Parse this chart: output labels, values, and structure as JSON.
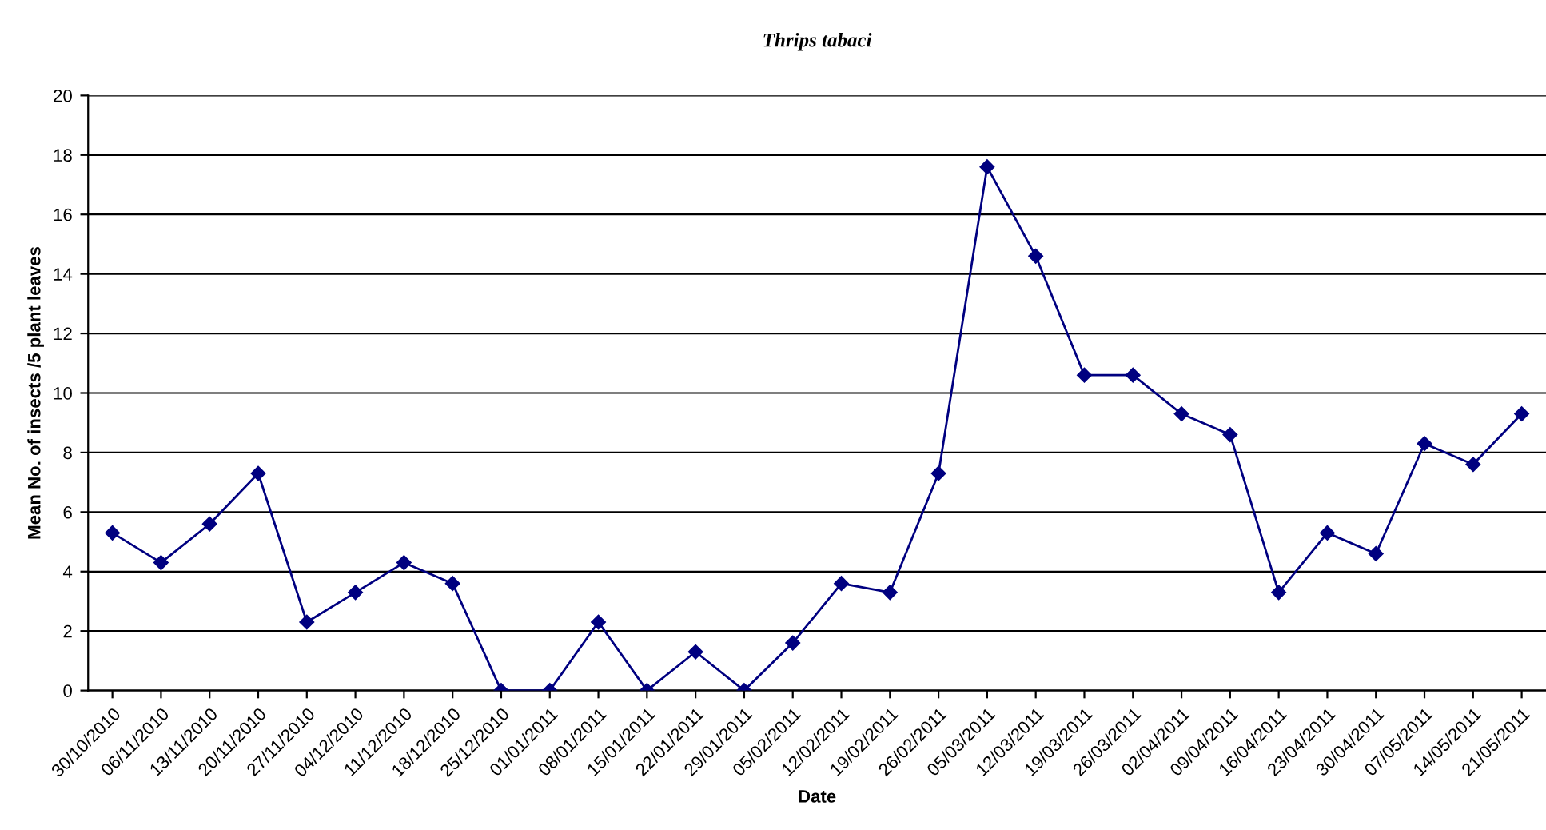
{
  "chart_data": {
    "type": "line",
    "title": "Thrips tabaci",
    "xlabel": "Date",
    "ylabel": "Mean No. of insects /5 plant leaves",
    "categories": [
      "30/10/2010",
      "06/11/2010",
      "13/11/2010",
      "20/11/2010",
      "27/11/2010",
      "04/12/2010",
      "11/12/2010",
      "18/12/2010",
      "25/12/2010",
      "01/01/2011",
      "08/01/2011",
      "15/01/2011",
      "22/01/2011",
      "29/01/2011",
      "05/02/2011",
      "12/02/2011",
      "19/02/2011",
      "26/02/2011",
      "05/03/2011",
      "12/03/2011",
      "19/03/2011",
      "26/03/2011",
      "02/04/2011",
      "09/04/2011",
      "16/04/2011",
      "23/04/2011",
      "30/04/2011",
      "07/05/2011",
      "14/05/2011",
      "21/05/2011"
    ],
    "series": [
      {
        "color": "#000080",
        "values": [
          5.3,
          4.3,
          5.6,
          7.3,
          2.3,
          3.3,
          4.3,
          3.6,
          0,
          0,
          2.3,
          0,
          1.3,
          0,
          1.6,
          3.6,
          3.3,
          7.3,
          17.6,
          14.6,
          10.6,
          10.6,
          9.3,
          8.6,
          3.3,
          5.3,
          4.6,
          8.3,
          7.6,
          9.3
        ]
      }
    ],
    "ylim": [
      0,
      20
    ],
    "yticks": [
      0,
      2,
      4,
      6,
      8,
      10,
      12,
      14,
      16,
      18,
      20
    ],
    "grid": "y",
    "legend": false,
    "marker": "diamond",
    "line_style": "solid"
  }
}
